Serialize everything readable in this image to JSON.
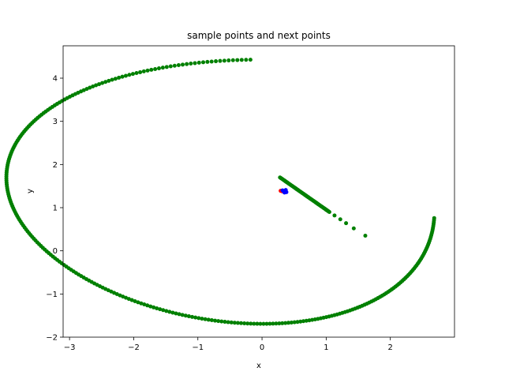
{
  "chart_data": {
    "type": "scatter",
    "title": "sample points and next points",
    "xlabel": "x",
    "ylabel": "y",
    "xlim": [
      -3.1,
      3.0
    ],
    "ylim": [
      -2.0,
      4.75
    ],
    "xticks": [
      -3,
      -2,
      -1,
      0,
      1,
      2
    ],
    "yticks": [
      -2,
      -1,
      0,
      1,
      2,
      3,
      4
    ],
    "grid": false,
    "series": [
      {
        "color": "#008000",
        "shape": "circle",
        "segments": [
          {
            "kind": "spiral",
            "cx": 0.0,
            "cy": 1.38,
            "a_start": 4.6,
            "b_start": 3.05,
            "a_end": 2.74,
            "b_end": 3.08,
            "t_start": 1.61,
            "t_end": 6.08,
            "count": 300
          },
          {
            "kind": "line",
            "x1": 0.28,
            "y1": 1.7,
            "x2": 1.05,
            "y2": 0.9,
            "count": 70
          },
          {
            "kind": "points",
            "x": [
              1.13,
              1.22,
              1.31,
              1.43,
              1.61
            ],
            "y": [
              0.82,
              0.73,
              0.64,
              0.52,
              0.35
            ]
          }
        ]
      },
      {
        "color": "#ff0000",
        "shape": "circle",
        "segments": [
          {
            "kind": "points",
            "x": [
              0.29,
              0.31
            ],
            "y": [
              1.39,
              1.38
            ]
          }
        ]
      },
      {
        "color": "#0000ff",
        "shape": "circle",
        "segments": [
          {
            "kind": "points",
            "x": [
              0.32,
              0.34,
              0.36,
              0.38,
              0.37,
              0.35
            ],
            "y": [
              1.4,
              1.37,
              1.39,
              1.36,
              1.41,
              1.35
            ]
          }
        ]
      }
    ]
  }
}
